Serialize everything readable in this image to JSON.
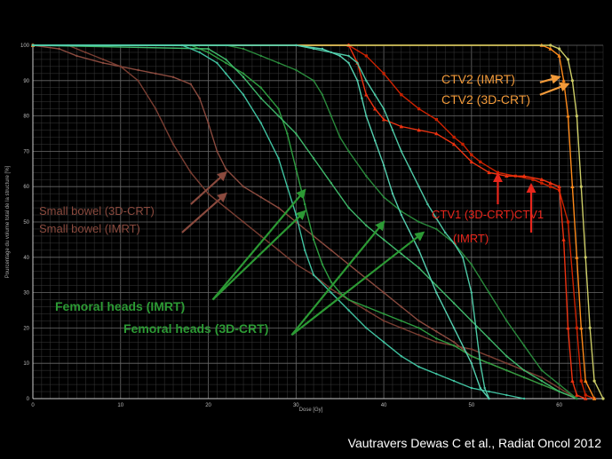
{
  "chart_data": {
    "type": "line",
    "title": "",
    "xlabel": "Dose [Gy]",
    "ylabel": "Pourcentage du volume total de la structure [%]",
    "xlim": [
      0,
      65
    ],
    "ylim": [
      0,
      100
    ],
    "xticks": [
      0,
      10,
      20,
      30,
      40,
      50,
      60
    ],
    "yticks": [
      0,
      10,
      20,
      30,
      40,
      50,
      60,
      70,
      80,
      90,
      100
    ],
    "grid": true,
    "series": [
      {
        "color": "#cc2200",
        "marker": "square",
        "x": [
          0,
          36,
          38,
          40,
          42,
          44,
          46,
          48,
          49,
          50,
          51,
          53,
          55,
          57,
          58,
          59,
          60,
          61,
          62,
          62.5,
          63,
          64
        ],
        "y": [
          100,
          100,
          97,
          92,
          86,
          82,
          79,
          74,
          72,
          69,
          67,
          64,
          63,
          62,
          61,
          60,
          59,
          50,
          20,
          5,
          1,
          0
        ]
      },
      {
        "color": "#ee3311",
        "marker": "triangle",
        "x": [
          0,
          36,
          37,
          38,
          39,
          40,
          42,
          44,
          46,
          48,
          50,
          52,
          54,
          56,
          58,
          59,
          60,
          60.5,
          61,
          61.5,
          62,
          63
        ],
        "y": [
          100,
          100,
          95,
          86,
          82,
          79,
          77,
          76,
          75,
          72,
          67,
          64,
          63,
          63,
          62,
          61,
          60,
          45,
          20,
          5,
          1,
          0
        ]
      },
      {
        "color": "#ff8a1a",
        "marker": "triangle",
        "x": [
          0,
          58,
          59,
          60,
          60.5,
          61,
          61.5,
          62,
          62.5,
          63,
          64
        ],
        "y": [
          100,
          100,
          99,
          97,
          90,
          80,
          60,
          40,
          20,
          5,
          0
        ]
      },
      {
        "color": "#cccc66",
        "marker": "circle",
        "x": [
          0,
          59,
          60,
          61,
          61.5,
          62,
          62.5,
          63,
          63.5,
          64,
          65
        ],
        "y": [
          100,
          100,
          99,
          96,
          90,
          80,
          60,
          40,
          20,
          5,
          0
        ]
      },
      {
        "color": "#8a4a3e",
        "marker": "dot",
        "x": [
          0,
          3,
          5,
          8,
          10,
          12,
          14,
          16,
          18,
          19,
          20,
          21,
          22,
          24,
          26,
          28,
          30,
          32,
          34,
          36,
          38,
          40,
          42,
          44,
          46,
          48,
          50,
          52,
          54,
          56,
          58,
          60,
          62
        ],
        "y": [
          100,
          99,
          97,
          95,
          94,
          93,
          92,
          91,
          89,
          85,
          78,
          70,
          65,
          60,
          57,
          54,
          50,
          46,
          42,
          38,
          34,
          30,
          26,
          22,
          19,
          16,
          12,
          10,
          8,
          6,
          4,
          2,
          0
        ]
      },
      {
        "color": "#7a3e32",
        "marker": "dot",
        "x": [
          0,
          4,
          6,
          8,
          10,
          12,
          14,
          16,
          18,
          20,
          22,
          24,
          26,
          28,
          30,
          32,
          34,
          36,
          38,
          40,
          42,
          44,
          46,
          48,
          50,
          52,
          54,
          56,
          58,
          60,
          62
        ],
        "y": [
          100,
          100,
          98,
          96,
          94,
          90,
          82,
          72,
          64,
          58,
          54,
          50,
          46,
          42,
          38,
          35,
          31,
          28,
          25,
          22,
          20,
          18,
          16,
          15,
          14,
          12,
          10,
          8,
          6,
          3,
          0
        ]
      },
      {
        "color": "#2e9e40",
        "marker": "dot",
        "x": [
          0,
          18,
          20,
          22,
          24,
          26,
          28,
          29,
          30,
          31,
          32,
          33,
          34,
          35,
          36,
          38,
          40,
          42,
          44,
          46,
          48,
          50,
          52,
          54,
          56,
          58,
          60,
          62
        ],
        "y": [
          100,
          100,
          98,
          95,
          92,
          88,
          82,
          75,
          65,
          55,
          45,
          38,
          33,
          30,
          28,
          26,
          24,
          22,
          20,
          17,
          15,
          12,
          10,
          8,
          6,
          4,
          2,
          0
        ]
      },
      {
        "color": "#3fb86a",
        "marker": "dot",
        "x": [
          0,
          20,
          22,
          24,
          26,
          28,
          30,
          32,
          34,
          36,
          38,
          40,
          42,
          44,
          46,
          48,
          50,
          52,
          54,
          56,
          58,
          60,
          62
        ],
        "y": [
          100,
          99,
          96,
          91,
          85,
          80,
          75,
          68,
          61,
          54,
          49,
          45,
          41,
          37,
          32,
          27,
          22,
          17,
          12,
          8,
          5,
          2,
          0
        ]
      },
      {
        "color": "#2a8a3c",
        "marker": "dot",
        "x": [
          0,
          22,
          24,
          26,
          28,
          30,
          32,
          33,
          34,
          35,
          36,
          38,
          40,
          42,
          44,
          46,
          48,
          50,
          52,
          54,
          56,
          58,
          60,
          62
        ],
        "y": [
          100,
          100,
          99,
          97,
          95,
          93,
          90,
          86,
          80,
          74,
          70,
          63,
          57,
          53,
          50,
          48,
          44,
          38,
          30,
          22,
          15,
          8,
          4,
          0
        ]
      },
      {
        "color": "#4ec9a6",
        "marker": "dot",
        "x": [
          0,
          30,
          32,
          34,
          36,
          37,
          38,
          39,
          40,
          41,
          42,
          43,
          44,
          45,
          46,
          47,
          48,
          49,
          50,
          50.5,
          51,
          51.5,
          52
        ],
        "y": [
          100,
          100,
          99,
          98,
          97,
          95,
          90,
          86,
          82,
          76,
          70,
          65,
          60,
          55,
          51,
          47,
          44,
          40,
          30,
          20,
          10,
          3,
          0
        ]
      },
      {
        "color": "#40c2a0",
        "marker": "dot",
        "x": [
          0,
          17,
          19,
          21,
          22,
          24,
          26,
          28,
          29,
          30,
          31,
          32,
          34,
          36,
          38,
          40,
          42,
          44,
          46,
          48,
          50,
          52,
          54,
          56
        ],
        "y": [
          100,
          100,
          98,
          95,
          92,
          86,
          78,
          68,
          60,
          52,
          42,
          35,
          30,
          25,
          20,
          16,
          12,
          9,
          7,
          5,
          3,
          2,
          1,
          0
        ]
      },
      {
        "color": "#55d0b0",
        "marker": "dot",
        "x": [
          0,
          30,
          33,
          35,
          36,
          37,
          37.5,
          38,
          39,
          40,
          41,
          42,
          44,
          46,
          48,
          50,
          51,
          52
        ],
        "y": [
          100,
          100,
          99,
          97,
          95,
          90,
          85,
          80,
          73,
          66,
          58,
          52,
          42,
          30,
          20,
          10,
          3,
          0
        ]
      }
    ]
  },
  "annotations": {
    "ctv2_imrt": "CTV2 (IMRT)",
    "ctv2_3dcrt": "CTV2 (3D-CRT)",
    "ctv1_3dcrt": "CTV1 (3D-CRT)CTV1",
    "ctv1_imrt": "(IMRT)",
    "small_bowel_3dcrt": "Small bowel (3D-CRT)",
    "small_bowel_imrt": "Small bowel (IMRT)",
    "femoral_imrt": "Femoral heads (IMRT)",
    "femoral_3dcrt": "Femoral heads (3D-CRT)"
  },
  "caption": "Vautravers Dewas C et al., Radiat Oncol 2012",
  "colors": {
    "ctv2_label": "#f29a3a",
    "ctv1_label": "#e8261c",
    "small_bowel_label": "#8a4a3e",
    "femoral_label": "#2c9a34"
  }
}
